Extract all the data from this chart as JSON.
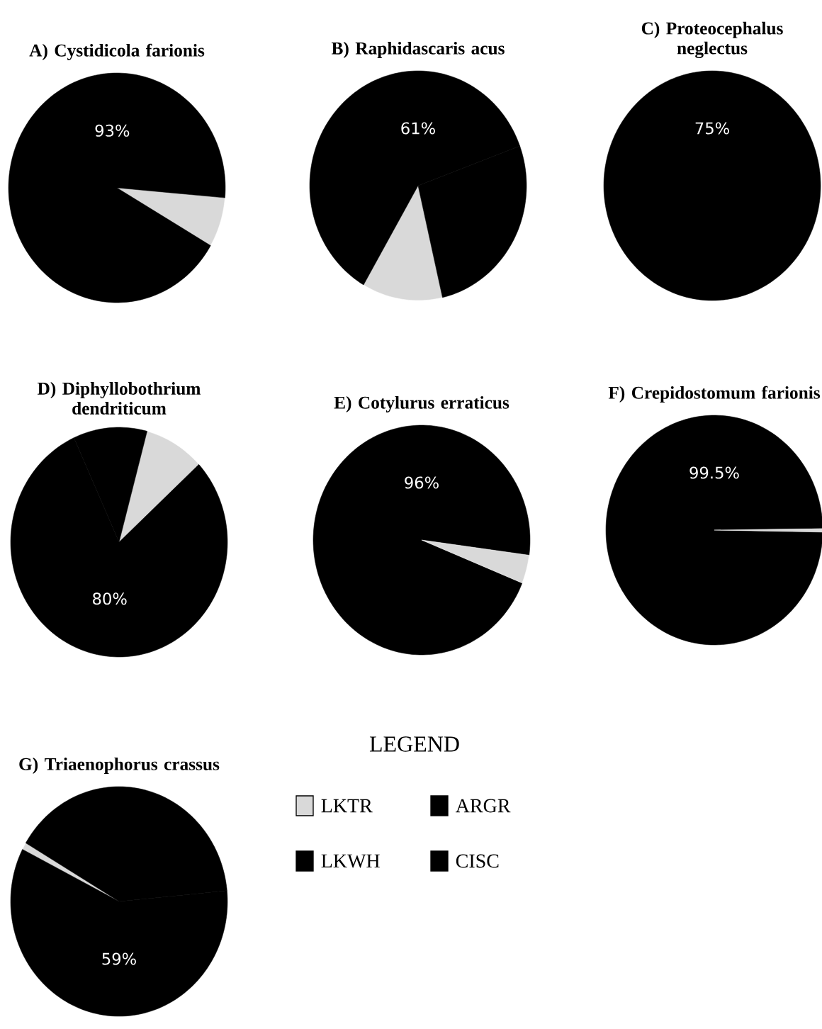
{
  "chart_data": [
    {
      "type": "pie",
      "title": "A) Cystidicola farionis",
      "categories": [
        null,
        null
      ],
      "values": [
        7,
        93
      ],
      "colors": [
        "#d9d9d9",
        "#000000"
      ],
      "value_labels": [
        null,
        "93%"
      ]
    },
    {
      "type": "pie",
      "title": "B) Raphidascaris acus",
      "categories": [
        null,
        null,
        null
      ],
      "values": [
        12,
        61,
        27
      ],
      "colors": [
        "#d9d9d9",
        "#000000",
        "#000000"
      ],
      "value_labels": [
        null,
        "61%",
        null
      ]
    },
    {
      "type": "pie",
      "title": "C) Proteocephalus neglectus",
      "categories": [
        null,
        null
      ],
      "values": [
        75,
        25
      ],
      "colors": [
        "#000000",
        "#000000"
      ],
      "value_labels": [
        "75%",
        null
      ]
    },
    {
      "type": "pie",
      "title": "D) Diphyllobothrium dendriticum",
      "categories": [
        null,
        null,
        null
      ],
      "values": [
        9,
        80,
        11
      ],
      "colors": [
        "#d9d9d9",
        "#000000",
        "#000000"
      ],
      "value_labels": [
        null,
        "80%",
        null
      ]
    },
    {
      "type": "pie",
      "title": "E) Cotylurus erraticus",
      "categories": [
        null,
        null
      ],
      "values": [
        96,
        4
      ],
      "colors": [
        "#000000",
        "#d9d9d9"
      ],
      "value_labels": [
        "96%",
        null
      ]
    },
    {
      "type": "pie",
      "title": "F) Crepidostomum farionis",
      "categories": [
        null,
        null
      ],
      "values": [
        99.5,
        0.5
      ],
      "colors": [
        "#000000",
        "#d9d9d9"
      ],
      "value_labels": [
        "99.5%",
        null
      ]
    },
    {
      "type": "pie",
      "title": "G) Triaenophorus crassus",
      "categories": [
        null,
        null,
        null
      ],
      "values": [
        1,
        40,
        59
      ],
      "colors": [
        "#d9d9d9",
        "#000000",
        "#000000"
      ],
      "value_labels": [
        null,
        null,
        "59%"
      ]
    },
    {
      "type": "other",
      "title": "LEGEND",
      "categories": [
        "LKTR",
        "ARGR",
        "LKWH",
        "CISC"
      ],
      "colors": [
        "#d9d9d9",
        "#000000",
        "#000000",
        "#000000"
      ]
    }
  ]
}
